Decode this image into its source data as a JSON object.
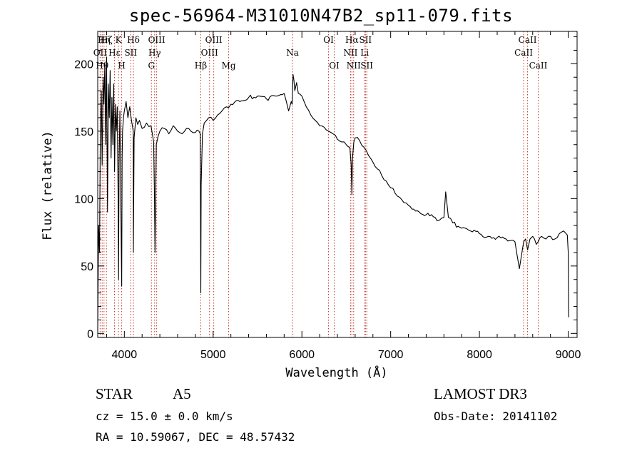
{
  "title": "spec-56964-M31010N47B2_sp11-079.fits",
  "info": {
    "object_class": "STAR",
    "subclass": "A5",
    "cz": "cz = 15.0 ± 0.0 km/s",
    "radec": "RA =  10.59067, DEC =  48.57432",
    "survey": "LAMOST DR3",
    "obs_date": "Obs-Date: 20141102"
  },
  "chart_data": {
    "type": "line",
    "title": "spec-56964-M31010N47B2_sp11-079.fits",
    "xlabel": "Wavelength (Å)",
    "ylabel": "Flux (relative)",
    "xlim": [
      3700,
      9100
    ],
    "ylim": [
      -3,
      224
    ],
    "xticks": [
      4000,
      5000,
      6000,
      7000,
      8000,
      9000
    ],
    "yticks": [
      0,
      50,
      100,
      150,
      200
    ],
    "series": [
      {
        "name": "flux",
        "x": [
          3700,
          3710,
          3720,
          3730,
          3740,
          3750,
          3760,
          3770,
          3780,
          3790,
          3800,
          3810,
          3820,
          3830,
          3840,
          3850,
          3860,
          3870,
          3880,
          3890,
          3900,
          3910,
          3920,
          3930,
          3935,
          3940,
          3950,
          3960,
          3970,
          3975,
          3980,
          3990,
          4000,
          4020,
          4040,
          4060,
          4080,
          4100,
          4102,
          4110,
          4130,
          4150,
          4170,
          4200,
          4250,
          4300,
          4330,
          4340,
          4345,
          4360,
          4400,
          4450,
          4500,
          4550,
          4600,
          4650,
          4700,
          4750,
          4800,
          4840,
          4855,
          4861,
          4865,
          4880,
          4900,
          4950,
          5000,
          5050,
          5100,
          5150,
          5200,
          5300,
          5400,
          5500,
          5600,
          5700,
          5800,
          5850,
          5880,
          5890,
          5900,
          5910,
          5920,
          5940,
          5960,
          6000,
          6050,
          6100,
          6150,
          6200,
          6250,
          6300,
          6350,
          6400,
          6450,
          6500,
          6540,
          6555,
          6563,
          6570,
          6585,
          6600,
          6650,
          6700,
          6750,
          6800,
          6850,
          6900,
          6950,
          7000,
          7050,
          7100,
          7150,
          7200,
          7300,
          7400,
          7500,
          7550,
          7600,
          7620,
          7650,
          7700,
          7800,
          7900,
          8000,
          8100,
          8200,
          8300,
          8400,
          8450,
          8498,
          8520,
          8542,
          8570,
          8600,
          8640,
          8662,
          8700,
          8750,
          8800,
          8850,
          8900,
          8950,
          8990,
          9000,
          9005
        ],
        "values": [
          2,
          80,
          60,
          150,
          180,
          125,
          190,
          170,
          200,
          140,
          205,
          90,
          185,
          160,
          195,
          130,
          175,
          140,
          185,
          120,
          170,
          150,
          168,
          100,
          40,
          125,
          165,
          95,
          35,
          130,
          150,
          160,
          165,
          172,
          160,
          168,
          158,
          150,
          60,
          145,
          160,
          155,
          158,
          152,
          156,
          154,
          142,
          100,
          60,
          140,
          150,
          152,
          148,
          154,
          150,
          148,
          152,
          150,
          149,
          150,
          148,
          30,
          110,
          148,
          156,
          160,
          158,
          162,
          165,
          168,
          170,
          172,
          175,
          176,
          174,
          176,
          178,
          165,
          172,
          170,
          192,
          188,
          180,
          186,
          178,
          176,
          168,
          162,
          158,
          154,
          153,
          150,
          148,
          144,
          142,
          140,
          138,
          125,
          103,
          130,
          142,
          145,
          143,
          138,
          132,
          127,
          122,
          117,
          113,
          108,
          104,
          101,
          97,
          95,
          91,
          88,
          86,
          84,
          86,
          105,
          86,
          82,
          78,
          76,
          74,
          72,
          71,
          70,
          68,
          48,
          68,
          70,
          62,
          70,
          72,
          66,
          68,
          72,
          70,
          72,
          70,
          74,
          76,
          73,
          60,
          12
        ]
      }
    ],
    "lines": [
      {
        "name": "OII",
        "wavelength": 3727,
        "row": 1
      },
      {
        "name": "Hθ",
        "wavelength": 3750,
        "row": 2
      },
      {
        "name": "Hη",
        "wavelength": 3771,
        "row": 0
      },
      {
        "name": "Hζ",
        "wavelength": 3798,
        "row": 0
      },
      {
        "name": "Hε",
        "wavelength": 3889,
        "row": 1
      },
      {
        "name": "K",
        "wavelength": 3934,
        "row": 0
      },
      {
        "name": "H",
        "wavelength": 3970,
        "row": 2
      },
      {
        "name": "SII",
        "wavelength": 4072,
        "row": 1
      },
      {
        "name": "Hδ",
        "wavelength": 4102,
        "row": 0
      },
      {
        "name": "G",
        "wavelength": 4305,
        "row": 2
      },
      {
        "name": "Hγ",
        "wavelength": 4341,
        "row": 1
      },
      {
        "name": "OIII",
        "wavelength": 4364,
        "row": 0
      },
      {
        "name": "Hβ",
        "wavelength": 4861,
        "row": 2
      },
      {
        "name": "OIII",
        "wavelength": 4959,
        "row": 1
      },
      {
        "name": "OIII",
        "wavelength": 5007,
        "row": 0
      },
      {
        "name": "Mg",
        "wavelength": 5175,
        "row": 2
      },
      {
        "name": "Na",
        "wavelength": 5894,
        "row": 1
      },
      {
        "name": "OI",
        "wavelength": 6300,
        "row": 0
      },
      {
        "name": "OI",
        "wavelength": 6364,
        "row": 2
      },
      {
        "name": "NII",
        "wavelength": 6548,
        "row": 1
      },
      {
        "name": "Hα",
        "wavelength": 6563,
        "row": 0
      },
      {
        "name": "NII",
        "wavelength": 6583,
        "row": 2
      },
      {
        "name": "Li",
        "wavelength": 6707,
        "row": 1
      },
      {
        "name": "SII",
        "wavelength": 6716,
        "row": 0
      },
      {
        "name": "SII",
        "wavelength": 6731,
        "row": 2
      },
      {
        "name": "CaII",
        "wavelength": 8498,
        "row": 1
      },
      {
        "name": "CaII",
        "wavelength": 8542,
        "row": 0
      },
      {
        "name": "CaII",
        "wavelength": 8662,
        "row": 2
      }
    ]
  }
}
